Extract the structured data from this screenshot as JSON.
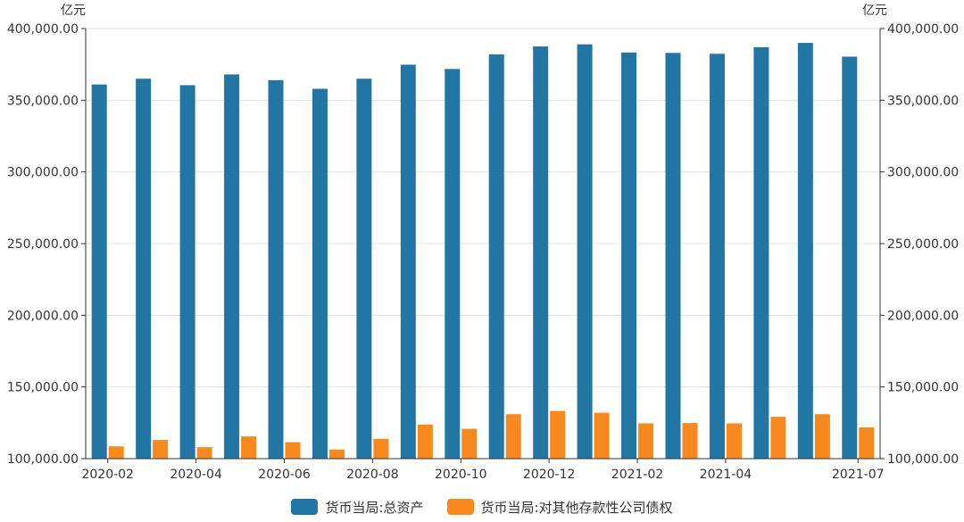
{
  "colors": {
    "series0": "#2176a4",
    "series1": "#f7891f",
    "grid": "#e0e0e0",
    "axis": "#333333"
  },
  "chart_data": {
    "type": "bar",
    "categories": [
      "2020-02",
      "2020-03",
      "2020-04",
      "2020-05",
      "2020-06",
      "2020-07",
      "2020-08",
      "2020-09",
      "2020-10",
      "2020-11",
      "2020-12",
      "2021-01",
      "2021-02",
      "2021-03",
      "2021-04",
      "2021-05",
      "2021-06",
      "2021-07"
    ],
    "x_tick_labels": [
      "2020-02",
      "2020-04",
      "2020-06",
      "2020-08",
      "2020-10",
      "2020-12",
      "2021-02",
      "2021-04",
      "2021-07"
    ],
    "series": [
      {
        "name": "货币当局:总资产",
        "values": [
          361000,
          365000,
          360500,
          368000,
          364000,
          358000,
          365000,
          374800,
          371800,
          382000,
          387500,
          389000,
          383300,
          383000,
          382400,
          387000,
          390000,
          380400
        ]
      },
      {
        "name": "货币当局:对其他存款性公司债权",
        "values": [
          108600,
          113000,
          108000,
          115500,
          111500,
          106400,
          113800,
          123800,
          120800,
          131000,
          133300,
          132000,
          124600,
          124800,
          124600,
          129200,
          131000,
          121800
        ]
      }
    ],
    "ylim": [
      100000,
      400000
    ],
    "y_ticks": [
      "100,000.00",
      "150,000.00",
      "200,000.00",
      "250,000.00",
      "300,000.00",
      "350,000.00",
      "400,000.00"
    ],
    "y_tick_values": [
      100000,
      150000,
      200000,
      250000,
      300000,
      350000,
      400000
    ],
    "ylabel_left": "亿元",
    "ylabel_right": "亿元",
    "grid": true,
    "legend_position": "bottom-center"
  }
}
